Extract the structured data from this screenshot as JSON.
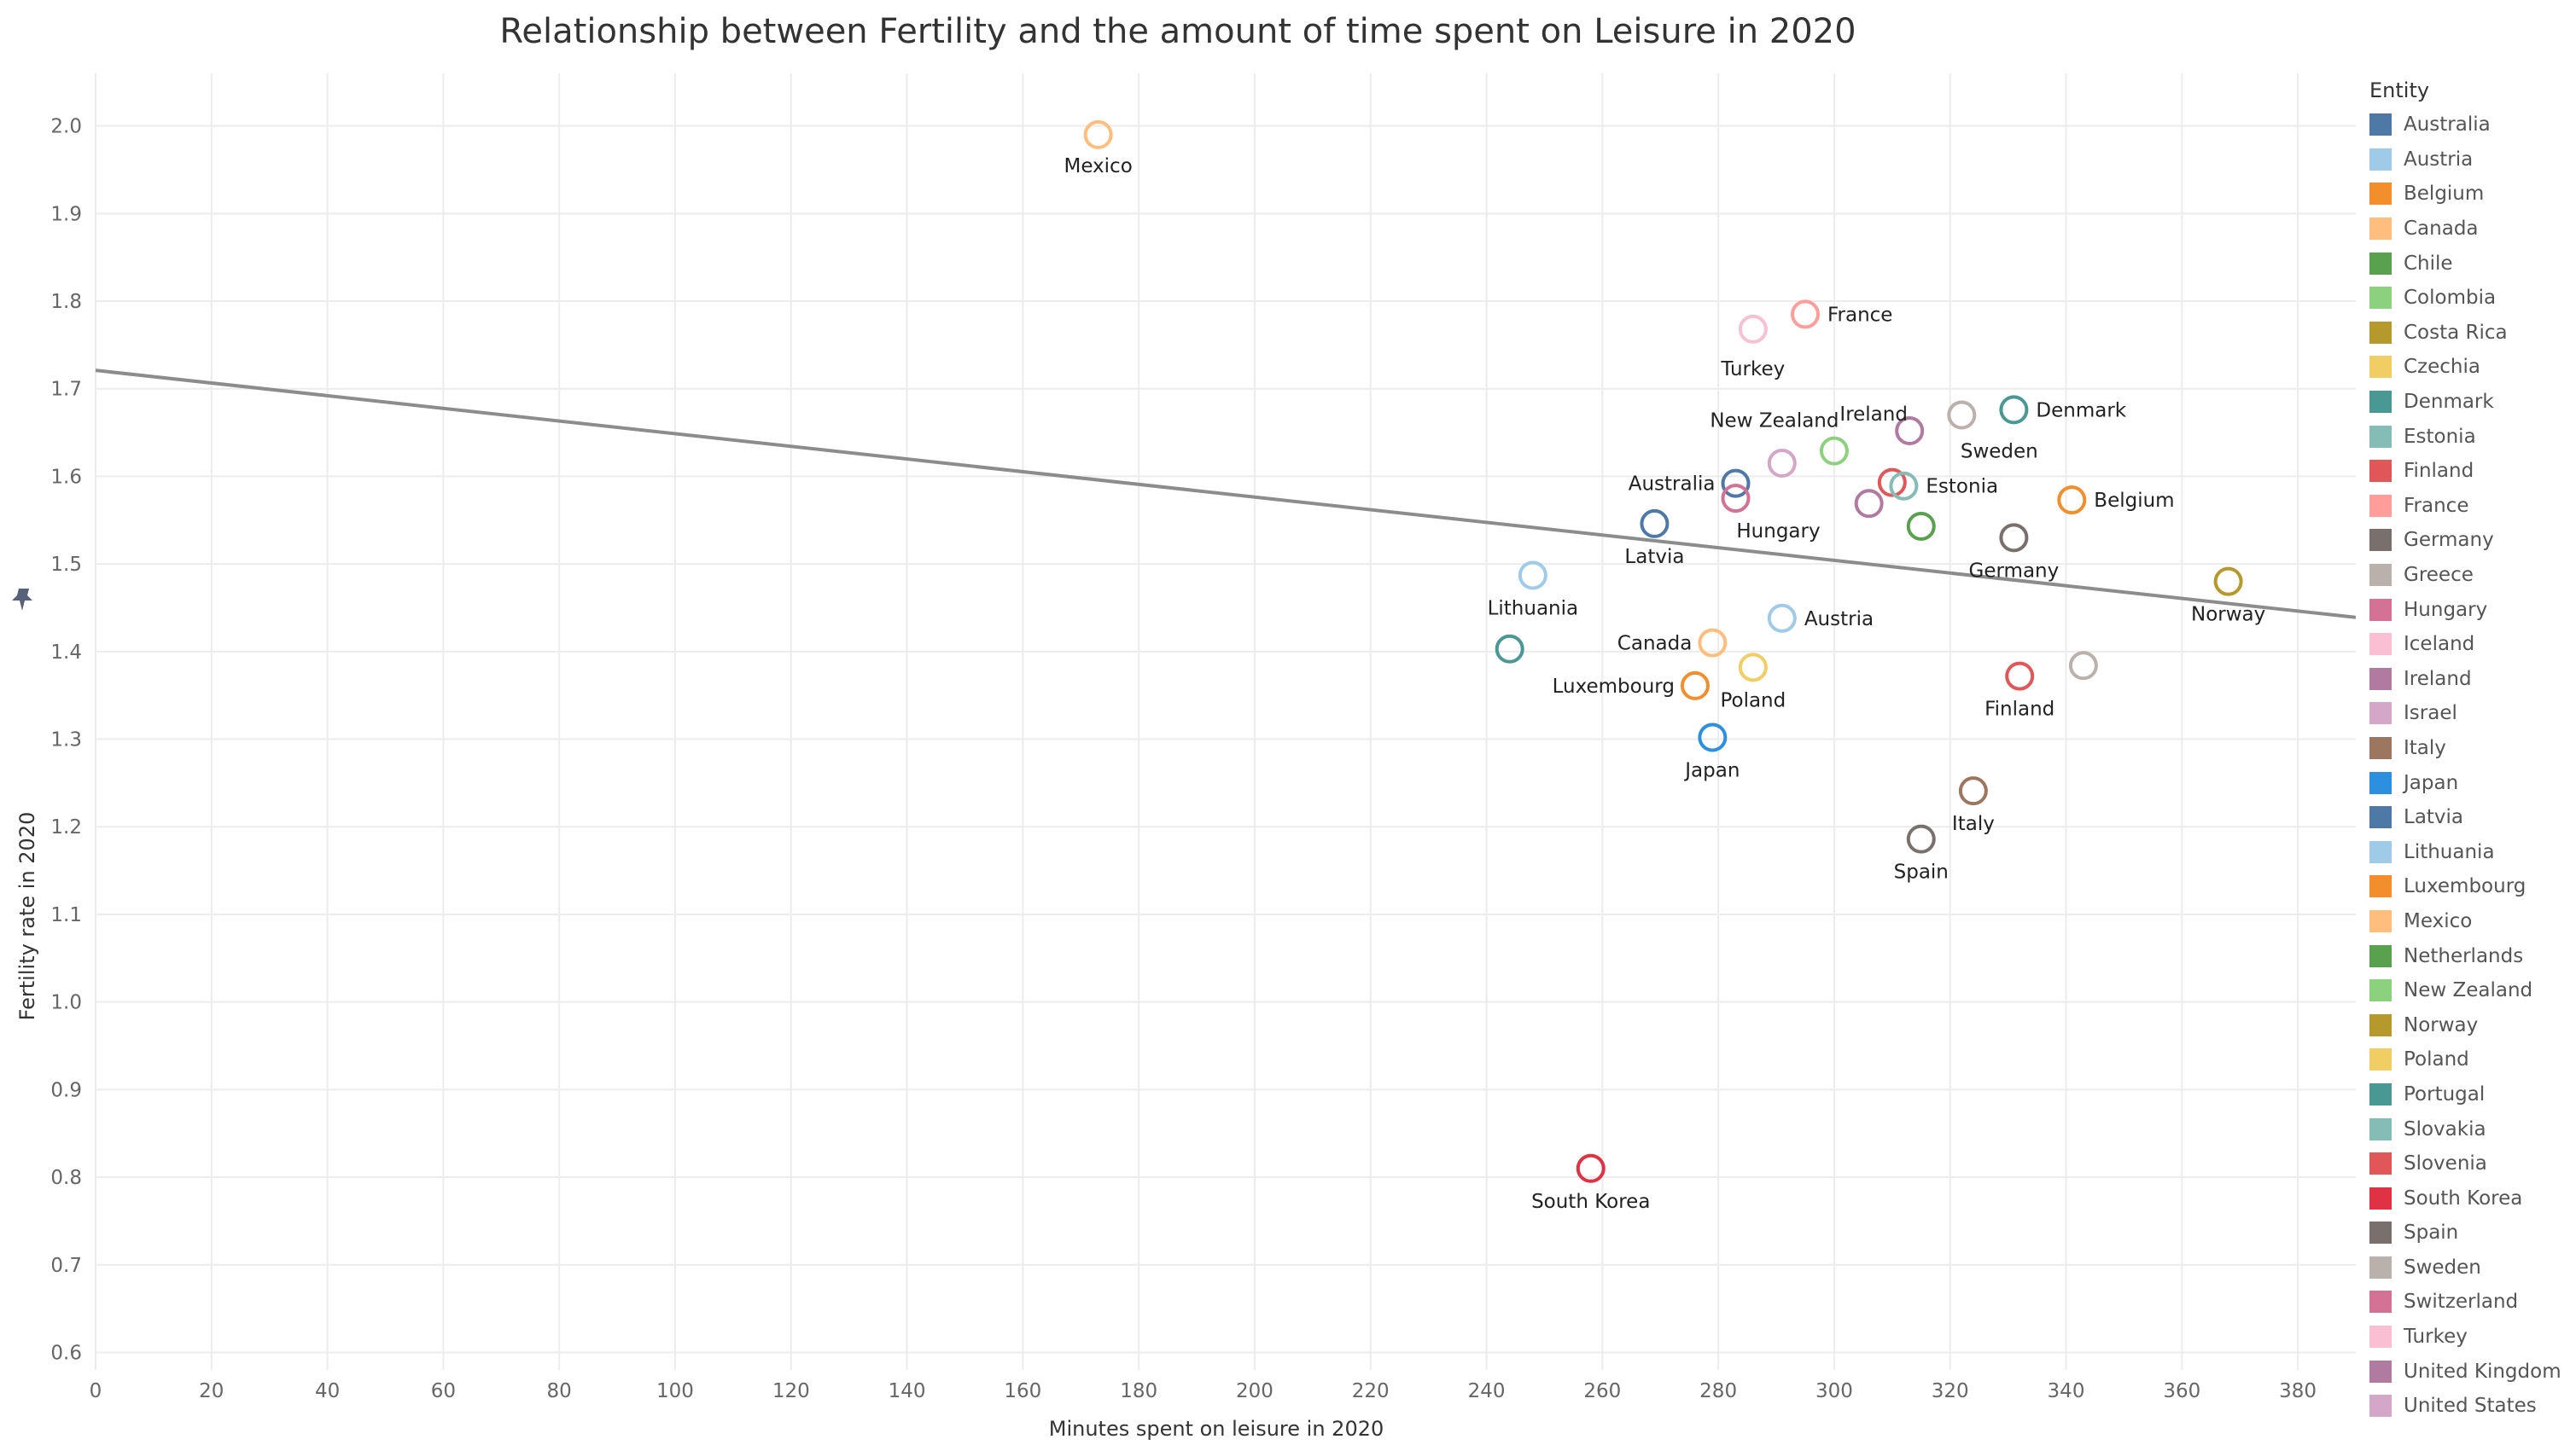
{
  "chart_data": {
    "type": "scatter",
    "title": "Relationship between Fertility and the amount of time spent on Leisure in 2020",
    "xlabel": "Minutes spent on leisure in 2020",
    "ylabel": "Fertility rate in 2020",
    "xlim": [
      0,
      390
    ],
    "ylim": [
      0.58,
      2.06
    ],
    "xticks": [
      0,
      20,
      40,
      60,
      80,
      100,
      120,
      140,
      160,
      180,
      200,
      220,
      240,
      260,
      280,
      300,
      320,
      340,
      360,
      380
    ],
    "yticks": [
      0.6,
      0.7,
      0.8,
      0.9,
      1.0,
      1.1,
      1.2,
      1.3,
      1.4,
      1.5,
      1.6,
      1.7,
      1.8,
      1.9,
      2.0
    ],
    "grid": true,
    "legend_title": "Entity",
    "legend_position": "right",
    "trendline": {
      "x": [
        0,
        390
      ],
      "y": [
        1.721,
        1.439
      ],
      "color": "#8c8c8c"
    },
    "points": [
      {
        "name": "Mexico",
        "x": 173,
        "y": 1.99,
        "label": "Mexico",
        "color": "#ffbe7d"
      },
      {
        "name": "France",
        "x": 295,
        "y": 1.785,
        "label": "France",
        "color": "#ff9d9a"
      },
      {
        "name": "Turkey",
        "x": 286,
        "y": 1.768,
        "label": "Turkey",
        "color": "#fabfd2"
      },
      {
        "name": "Denmark",
        "x": 331,
        "y": 1.676,
        "label": "Denmark",
        "color": "#499894"
      },
      {
        "name": "Sweden",
        "x": 322,
        "y": 1.67,
        "label": "Sweden",
        "color": "#bab0ac"
      },
      {
        "name": "Ireland",
        "x": 313,
        "y": 1.652,
        "label": "Ireland",
        "color": "#b07aa1"
      },
      {
        "name": "New Zealand",
        "x": 300,
        "y": 1.629,
        "label": "New Zealand",
        "color": "#8cd17d"
      },
      {
        "name": "Israel",
        "x": 291,
        "y": 1.615,
        "label": "",
        "color": "#d4a6c8"
      },
      {
        "name": "Australia",
        "x": 283,
        "y": 1.592,
        "label": "Australia",
        "color": "#4e79a7"
      },
      {
        "name": "Slovenia",
        "x": 310,
        "y": 1.593,
        "label": "",
        "color": "#e15759"
      },
      {
        "name": "Estonia",
        "x": 312,
        "y": 1.589,
        "label": "Estonia",
        "color": "#86bcb6"
      },
      {
        "name": "Hungary",
        "x": 283,
        "y": 1.575,
        "label": "Hungary",
        "color": "#d37295"
      },
      {
        "name": "United Kingdom",
        "x": 306,
        "y": 1.569,
        "label": "",
        "color": "#b07aa1"
      },
      {
        "name": "Belgium",
        "x": 341,
        "y": 1.573,
        "label": "Belgium",
        "color": "#f28e2b"
      },
      {
        "name": "Latvia",
        "x": 269,
        "y": 1.546,
        "label": "Latvia",
        "color": "#4e79a7"
      },
      {
        "name": "Netherlands",
        "x": 315,
        "y": 1.543,
        "label": "",
        "color": "#59a14f"
      },
      {
        "name": "Germany",
        "x": 331,
        "y": 1.53,
        "label": "Germany",
        "color": "#79706e"
      },
      {
        "name": "Lithuania",
        "x": 248,
        "y": 1.487,
        "label": "Lithuania",
        "color": "#a0cbe8"
      },
      {
        "name": "Norway",
        "x": 368,
        "y": 1.48,
        "label": "Norway",
        "color": "#b6992d"
      },
      {
        "name": "Austria",
        "x": 291,
        "y": 1.438,
        "label": "Austria",
        "color": "#a0cbe8"
      },
      {
        "name": "Canada",
        "x": 279,
        "y": 1.41,
        "label": "Canada",
        "color": "#ffbe7d"
      },
      {
        "name": "Portugal",
        "x": 244,
        "y": 1.403,
        "label": "",
        "color": "#499894"
      },
      {
        "name": "Greece",
        "x": 343,
        "y": 1.384,
        "label": "",
        "color": "#bab0ac"
      },
      {
        "name": "Poland",
        "x": 286,
        "y": 1.382,
        "label": "Poland",
        "color": "#f1ce63"
      },
      {
        "name": "Finland",
        "x": 332,
        "y": 1.372,
        "label": "Finland",
        "color": "#e15759"
      },
      {
        "name": "Luxembourg",
        "x": 276,
        "y": 1.361,
        "label": "Luxembourg",
        "color": "#f28e2b"
      },
      {
        "name": "Japan",
        "x": 279,
        "y": 1.302,
        "label": "Japan",
        "color": "#2d8fe0"
      },
      {
        "name": "Italy",
        "x": 324,
        "y": 1.241,
        "label": "Italy",
        "color": "#9d7660"
      },
      {
        "name": "Spain",
        "x": 315,
        "y": 1.186,
        "label": "Spain",
        "color": "#79706e"
      },
      {
        "name": "South Korea",
        "x": 258,
        "y": 0.81,
        "label": "South Korea",
        "color": "#e03244"
      }
    ],
    "legend": [
      {
        "name": "Australia",
        "color": "#4e79a7"
      },
      {
        "name": "Austria",
        "color": "#a0cbe8"
      },
      {
        "name": "Belgium",
        "color": "#f28e2b"
      },
      {
        "name": "Canada",
        "color": "#ffbe7d"
      },
      {
        "name": "Chile",
        "color": "#59a14f"
      },
      {
        "name": "Colombia",
        "color": "#8cd17d"
      },
      {
        "name": "Costa Rica",
        "color": "#b6992d"
      },
      {
        "name": "Czechia",
        "color": "#f1ce63"
      },
      {
        "name": "Denmark",
        "color": "#499894"
      },
      {
        "name": "Estonia",
        "color": "#86bcb6"
      },
      {
        "name": "Finland",
        "color": "#e15759"
      },
      {
        "name": "France",
        "color": "#ff9d9a"
      },
      {
        "name": "Germany",
        "color": "#79706e"
      },
      {
        "name": "Greece",
        "color": "#bab0ac"
      },
      {
        "name": "Hungary",
        "color": "#d37295"
      },
      {
        "name": "Iceland",
        "color": "#fabfd2"
      },
      {
        "name": "Ireland",
        "color": "#b07aa1"
      },
      {
        "name": "Israel",
        "color": "#d4a6c8"
      },
      {
        "name": "Italy",
        "color": "#9d7660"
      },
      {
        "name": "Japan",
        "color": "#2d8fe0"
      },
      {
        "name": "Latvia",
        "color": "#4e79a7"
      },
      {
        "name": "Lithuania",
        "color": "#a0cbe8"
      },
      {
        "name": "Luxembourg",
        "color": "#f28e2b"
      },
      {
        "name": "Mexico",
        "color": "#ffbe7d"
      },
      {
        "name": "Netherlands",
        "color": "#59a14f"
      },
      {
        "name": "New Zealand",
        "color": "#8cd17d"
      },
      {
        "name": "Norway",
        "color": "#b6992d"
      },
      {
        "name": "Poland",
        "color": "#f1ce63"
      },
      {
        "name": "Portugal",
        "color": "#499894"
      },
      {
        "name": "Slovakia",
        "color": "#86bcb6"
      },
      {
        "name": "Slovenia",
        "color": "#e15759"
      },
      {
        "name": "South Korea",
        "color": "#e03244"
      },
      {
        "name": "Spain",
        "color": "#79706e"
      },
      {
        "name": "Sweden",
        "color": "#bab0ac"
      },
      {
        "name": "Switzerland",
        "color": "#d37295"
      },
      {
        "name": "Turkey",
        "color": "#fabfd2"
      },
      {
        "name": "United Kingdom",
        "color": "#b07aa1"
      },
      {
        "name": "United States",
        "color": "#d4a6c8"
      }
    ]
  }
}
